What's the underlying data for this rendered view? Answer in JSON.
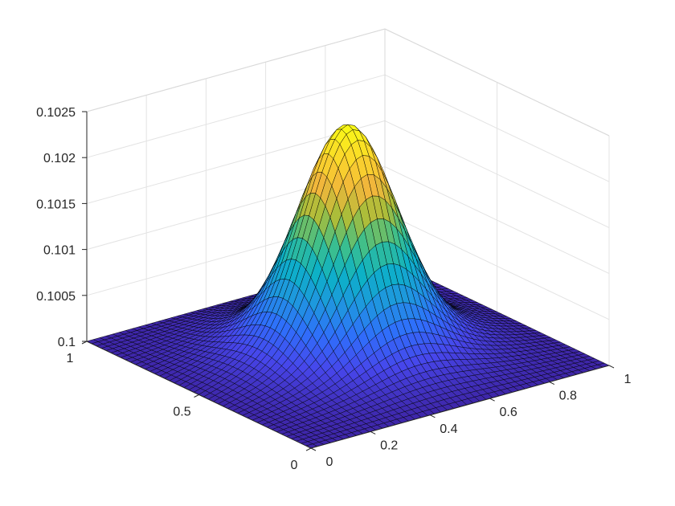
{
  "chart_data": {
    "type": "surface",
    "xlim": [
      0,
      1
    ],
    "ylim": [
      0,
      1
    ],
    "zlim": [
      0.1,
      0.1025
    ],
    "x_ticks": [
      0,
      0.2,
      0.4,
      0.6,
      0.8,
      1
    ],
    "x_tick_labels": [
      "0",
      "0.2",
      "0.4",
      "0.6",
      "0.8",
      "1"
    ],
    "y_ticks": [
      0,
      0.5,
      1
    ],
    "y_tick_labels": [
      "0",
      "0.5",
      "1"
    ],
    "z_ticks": [
      0.1,
      0.1005,
      0.101,
      0.1015,
      0.102,
      0.1025
    ],
    "z_tick_labels": [
      "0.1",
      "0.1005",
      "0.101",
      "0.1015",
      "0.102",
      "0.1025"
    ],
    "grid": true,
    "colormap": "parula",
    "colormap_stops": [
      "#3e26a8",
      "#4746eb",
      "#2f6ffb",
      "#1f96df",
      "#0cb1c7",
      "#3dbf8c",
      "#a8bd3a",
      "#f2b73b",
      "#fbd82a",
      "#f9fb15"
    ],
    "edge_color": "#000000",
    "mesh_resolution": 46,
    "surface": {
      "base": 0.1,
      "peak_center": [
        0.5,
        0.5
      ],
      "peak_height": 0.00205,
      "peak_width": 0.13,
      "ridge_center": 0.5,
      "ridge_height": 0.00016,
      "ridge_width": 0.17,
      "bump_height": 0.00012
    }
  }
}
